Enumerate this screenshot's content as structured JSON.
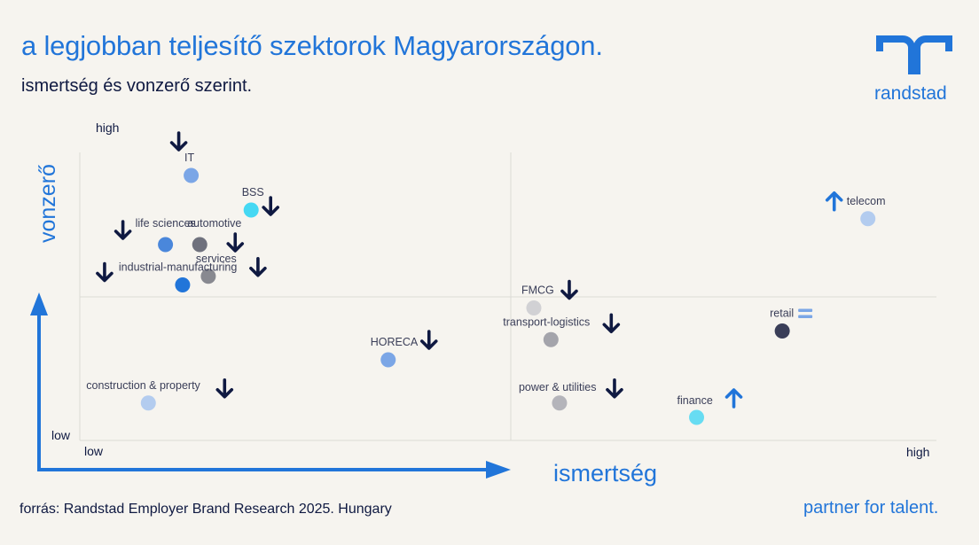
{
  "header": {
    "title": "a legjobban teljesítő szektorok Magyarországon.",
    "subtitle": "ismertség és vonzerő szerint."
  },
  "brand": {
    "name": "randstad",
    "tagline": "partner for talent.",
    "color": "#2175d9",
    "navy": "#0f1941"
  },
  "footer": {
    "source": "forrás: Randstad Employer Brand Research 2025. Hungary"
  },
  "chart_data": {
    "type": "scatter",
    "xlabel": "ismertség",
    "ylabel": "vonzerő",
    "x_ticks": [
      "low",
      "high"
    ],
    "y_ticks": [
      "low",
      "high"
    ],
    "xlim": [
      0,
      100
    ],
    "ylim": [
      0,
      100
    ],
    "grid": "quadrant lines at midpoint",
    "points": [
      {
        "label": "IT",
        "x": 13,
        "y": 92,
        "color": "#7ba6e6",
        "trend": "down"
      },
      {
        "label": "BSS",
        "x": 20,
        "y": 80,
        "color": "#45d8f3",
        "trend": "down"
      },
      {
        "label": "life sciences",
        "x": 10,
        "y": 68,
        "color": "#4a87db",
        "trend": "down"
      },
      {
        "label": "automotive",
        "x": 14,
        "y": 68,
        "color": "#6f717d",
        "trend": "down"
      },
      {
        "label": "services",
        "x": 15,
        "y": 57,
        "color": "#888990",
        "trend": "down"
      },
      {
        "label": "industrial-manufacturing",
        "x": 12,
        "y": 54,
        "color": "#2175d9",
        "trend": "down"
      },
      {
        "label": "construction & property",
        "x": 8,
        "y": 13,
        "color": "#b3ccef",
        "trend": "down"
      },
      {
        "label": "HORECA",
        "x": 36,
        "y": 28,
        "color": "#7ba6e6",
        "trend": "down"
      },
      {
        "label": "FMCG",
        "x": 53,
        "y": 46,
        "color": "#d1d1d4",
        "trend": "down"
      },
      {
        "label": "transport-logistics",
        "x": 55,
        "y": 35,
        "color": "#a4a4ab",
        "trend": "down"
      },
      {
        "label": "power & utilities",
        "x": 56,
        "y": 13,
        "color": "#b4b4ba",
        "trend": "down"
      },
      {
        "label": "finance",
        "x": 72,
        "y": 8,
        "color": "#67dcf2",
        "trend": "up"
      },
      {
        "label": "retail",
        "x": 82,
        "y": 38,
        "color": "#3a3e58",
        "trend": "equal"
      },
      {
        "label": "telecom",
        "x": 92,
        "y": 77,
        "color": "#b3ccef",
        "trend": "up"
      }
    ]
  }
}
